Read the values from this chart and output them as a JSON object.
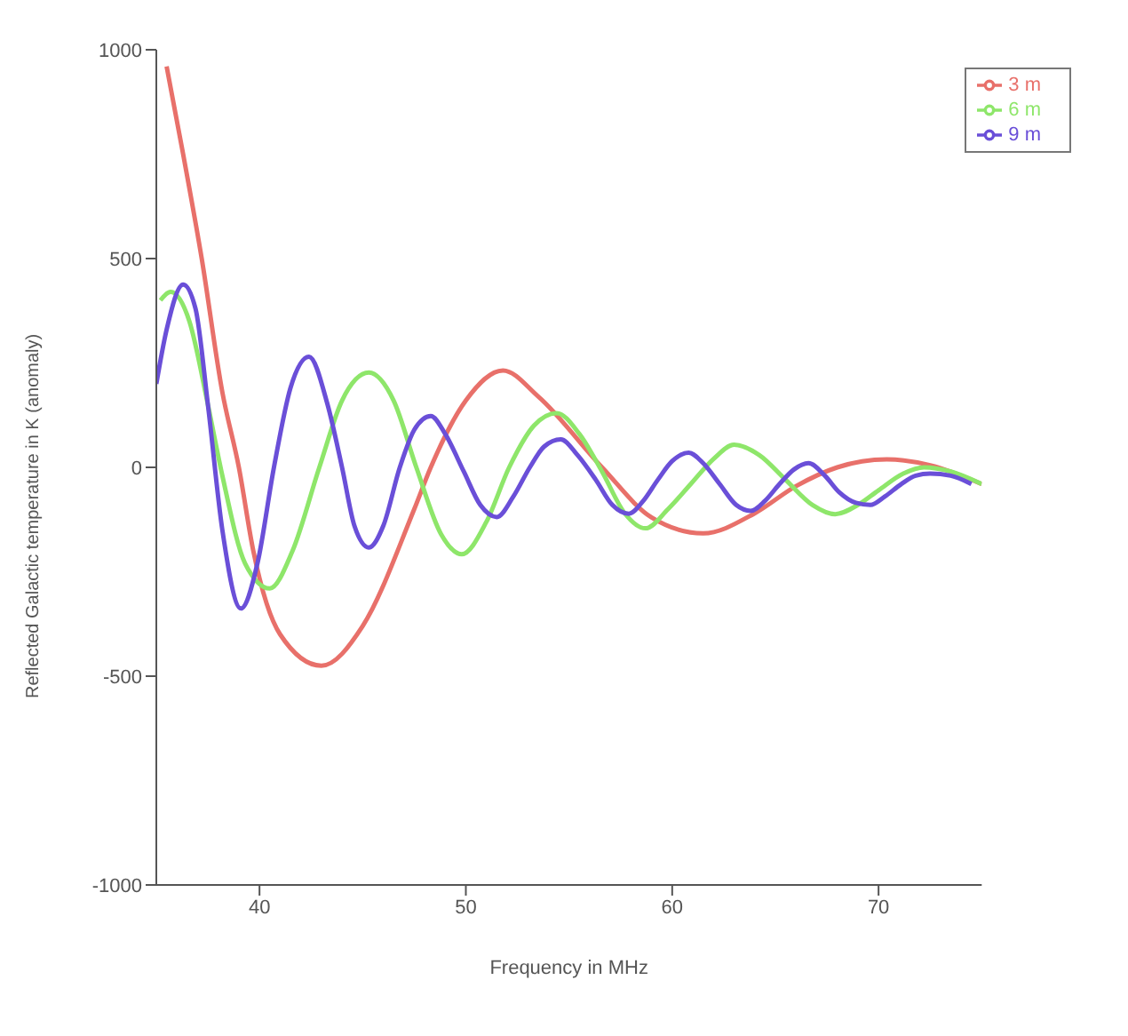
{
  "chart_data": {
    "type": "line",
    "xlabel": "Frequency in MHz",
    "ylabel": "Reflected Galactic temperature in K (anomaly)",
    "xlim": [
      35,
      75
    ],
    "xticks": [
      40,
      50,
      60,
      70
    ],
    "ylim": [
      -1000,
      1000
    ],
    "yticks": [
      -1000,
      -500,
      0,
      500,
      1000
    ],
    "grid": false,
    "legend": "top right",
    "marker": "none",
    "line_style": "solid",
    "series": [
      {
        "name": "3 m",
        "color": "#e8706a",
        "x": [
          35.5,
          36.3,
          37.2,
          38.2,
          39.0,
          39.7,
          41,
          43.0,
          45,
          47.5,
          48.3,
          50,
          51.8,
          53.5,
          56.6,
          59,
          61.5,
          64,
          66,
          68,
          70.4,
          72.5,
          75
        ],
        "values": [
          960,
          750,
          500,
          180,
          0,
          -200,
          -400,
          -475,
          -380,
          -100,
          0,
          160,
          232,
          170,
          0,
          -120,
          -158,
          -110,
          -45,
          0,
          19,
          5,
          -40
        ]
      },
      {
        "name": "6 m",
        "color": "#8ee66a",
        "x": [
          35.2,
          35.7,
          36.6,
          37.5,
          38.2,
          39.3,
          40.5,
          41.6,
          42.9,
          44,
          45.3,
          46.5,
          47.6,
          48.8,
          49.8,
          51,
          52.1,
          53.3,
          54.4,
          55.5,
          56.6,
          57.7,
          58.7,
          59.8,
          60.9,
          62,
          63,
          64.2,
          65.5,
          66.8,
          67.9,
          69,
          70,
          71.2,
          72.2,
          73.5,
          75
        ],
        "values": [
          400,
          420,
          350,
          150,
          -20,
          -230,
          -290,
          -200,
          0,
          160,
          227,
          160,
          0,
          -160,
          -208,
          -130,
          0,
          100,
          130,
          80,
          -10,
          -110,
          -146,
          -100,
          -40,
          20,
          54,
          30,
          -30,
          -90,
          -112,
          -90,
          -55,
          -15,
          0,
          -10,
          -40
        ]
      },
      {
        "name": "9 m",
        "color": "#6a4fd8",
        "x": [
          35.0,
          35.5,
          36.3,
          36.9,
          37.5,
          38.2,
          39.1,
          39.9,
          40.7,
          41.5,
          42.4,
          43.3,
          44.0,
          44.6,
          45.3,
          46,
          46.8,
          47.5,
          48.3,
          49,
          49.9,
          50.7,
          51.5,
          52.3,
          53.1,
          53.8,
          54.6,
          55.4,
          56.3,
          57.1,
          57.9,
          58.6,
          59.3,
          60,
          60.8,
          61.5,
          62.3,
          63.1,
          63.8,
          64.5,
          65.2,
          65.9,
          66.6,
          67.4,
          68.1,
          68.9,
          69.6,
          70.3,
          71.1,
          71.8,
          72.5,
          73.5,
          74.5
        ],
        "values": [
          200,
          330,
          438,
          380,
          150,
          -150,
          -338,
          -230,
          0,
          190,
          265,
          150,
          0,
          -140,
          -192,
          -140,
          0,
          90,
          123,
          80,
          -10,
          -90,
          -119,
          -70,
          0,
          50,
          67,
          30,
          -30,
          -90,
          -111,
          -80,
          -30,
          15,
          35,
          10,
          -40,
          -90,
          -104,
          -80,
          -40,
          -5,
          10,
          -20,
          -60,
          -85,
          -90,
          -70,
          -40,
          -20,
          -15,
          -20,
          -40
        ]
      }
    ]
  }
}
